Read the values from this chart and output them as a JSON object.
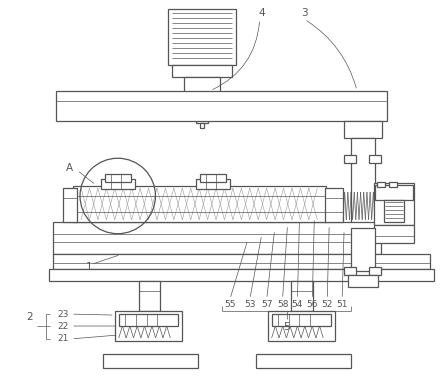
{
  "bg_color": "#ffffff",
  "line_color": "#555555",
  "line_width": 0.9,
  "thin_lw": 0.5,
  "hatch_color": "#aaaaaa",
  "fig_w": 4.43,
  "fig_h": 3.82,
  "dpi": 100
}
